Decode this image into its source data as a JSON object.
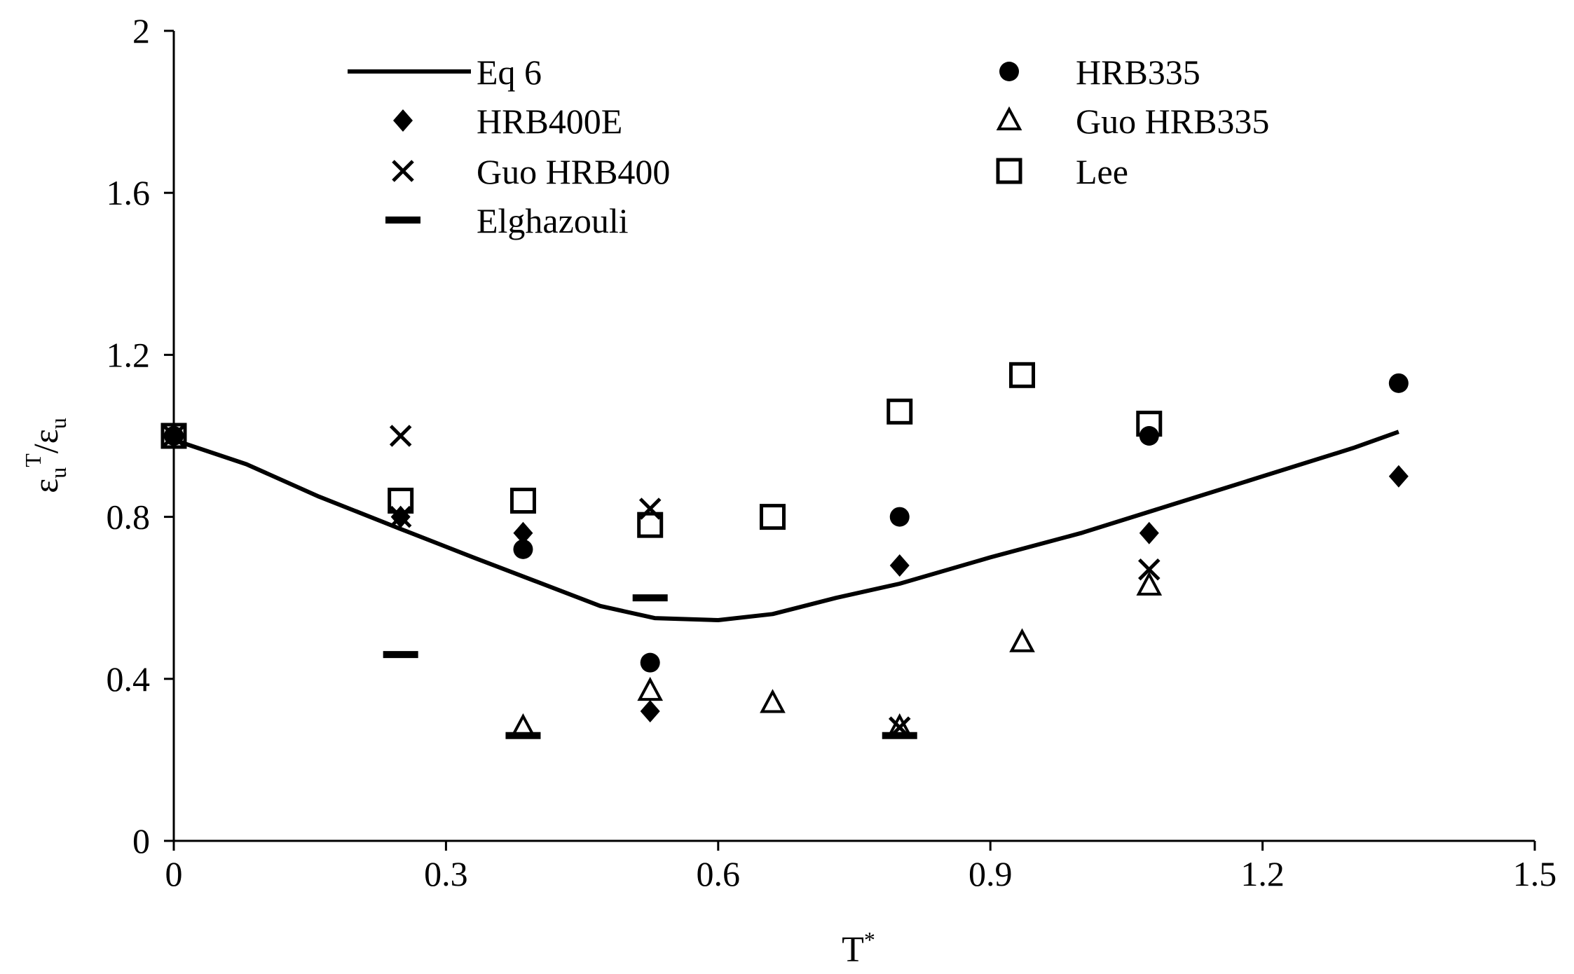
{
  "chart_data": {
    "type": "scatter",
    "title": "",
    "xlabel": {
      "base": "T",
      "sup": "*"
    },
    "ylabel": {
      "eps1": "ε",
      "sub1": "u",
      "sup1": "T",
      "slash": "/",
      "eps2": "ε",
      "sub2": "u"
    },
    "xlim": [
      0,
      1.5
    ],
    "ylim": [
      0,
      2
    ],
    "xticks": [
      0,
      0.3,
      0.6,
      0.9,
      1.2,
      1.5
    ],
    "yticks": [
      0,
      0.4,
      0.8,
      1.2,
      1.6,
      2
    ],
    "xtick_labels": [
      "0",
      "0.3",
      "0.6",
      "0.9",
      "1.2",
      "1.5"
    ],
    "ytick_labels": [
      "0",
      "0.4",
      "0.8",
      "1.2",
      "1.6",
      "2"
    ],
    "grid": false,
    "legend_position": "top",
    "series": [
      {
        "name": "Eq 6",
        "kind": "line",
        "marker": "line",
        "points": [
          [
            -0.01,
            1.0
          ],
          [
            0.0,
            0.99
          ],
          [
            0.08,
            0.93
          ],
          [
            0.16,
            0.85
          ],
          [
            0.25,
            0.77
          ],
          [
            0.33,
            0.7
          ],
          [
            0.4,
            0.64
          ],
          [
            0.47,
            0.58
          ],
          [
            0.53,
            0.55
          ],
          [
            0.6,
            0.545
          ],
          [
            0.66,
            0.56
          ],
          [
            0.73,
            0.6
          ],
          [
            0.8,
            0.635
          ],
          [
            0.9,
            0.7
          ],
          [
            1.0,
            0.76
          ],
          [
            1.1,
            0.83
          ],
          [
            1.2,
            0.9
          ],
          [
            1.3,
            0.97
          ],
          [
            1.35,
            1.01
          ]
        ]
      },
      {
        "name": "HRB335",
        "kind": "scatter",
        "marker": "circle",
        "points": [
          [
            0.0,
            1.0
          ],
          [
            0.385,
            0.72
          ],
          [
            0.525,
            0.44
          ],
          [
            0.8,
            0.8
          ],
          [
            1.075,
            1.0
          ],
          [
            1.35,
            1.13
          ]
        ]
      },
      {
        "name": "HRB400E",
        "kind": "scatter",
        "marker": "diamond",
        "points": [
          [
            0.0,
            1.0
          ],
          [
            0.25,
            0.8
          ],
          [
            0.385,
            0.76
          ],
          [
            0.525,
            0.32
          ],
          [
            0.8,
            0.68
          ],
          [
            1.075,
            0.76
          ],
          [
            1.35,
            0.9
          ]
        ]
      },
      {
        "name": "Guo HRB335",
        "kind": "scatter",
        "marker": "triangle",
        "points": [
          [
            0.385,
            0.28
          ],
          [
            0.525,
            0.37
          ],
          [
            0.66,
            0.34
          ],
          [
            0.8,
            0.28
          ],
          [
            0.935,
            0.49
          ],
          [
            1.075,
            0.63
          ]
        ]
      },
      {
        "name": "Guo HRB400",
        "kind": "scatter",
        "marker": "cross",
        "points": [
          [
            0.0,
            1.0
          ],
          [
            0.25,
            1.0
          ],
          [
            0.25,
            0.8
          ],
          [
            0.525,
            0.82
          ],
          [
            0.8,
            0.28
          ],
          [
            1.075,
            0.67
          ]
        ]
      },
      {
        "name": "Lee",
        "kind": "scatter",
        "marker": "square",
        "points": [
          [
            0.0,
            1.0
          ],
          [
            0.25,
            0.84
          ],
          [
            0.385,
            0.84
          ],
          [
            0.525,
            0.78
          ],
          [
            0.66,
            0.8
          ],
          [
            0.8,
            1.06
          ],
          [
            0.935,
            1.15
          ],
          [
            1.075,
            1.03
          ]
        ]
      },
      {
        "name": "Elghazouli",
        "kind": "scatter",
        "marker": "dash",
        "points": [
          [
            0.25,
            0.46
          ],
          [
            0.385,
            0.26
          ],
          [
            0.525,
            0.6
          ],
          [
            0.8,
            0.26
          ]
        ]
      }
    ],
    "legend": {
      "columns": [
        [
          "Eq 6",
          "HRB400E",
          "Guo HRB400",
          "Elghazouli"
        ],
        [
          "HRB335",
          "Guo HRB335",
          "Lee"
        ]
      ]
    }
  }
}
